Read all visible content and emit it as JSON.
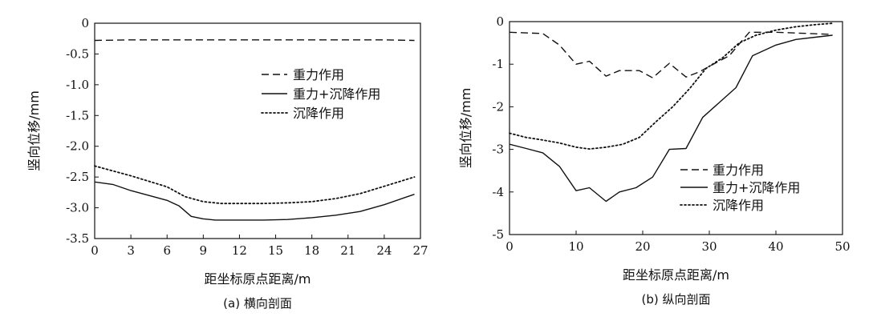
{
  "chart_data": [
    {
      "type": "line",
      "caption": "(a) 横向剖面",
      "xlabel": "距坐标原点距离/m",
      "ylabel": "竖向位移/mm",
      "xlim": [
        0,
        27
      ],
      "ylim": [
        -3.5,
        0
      ],
      "xticks": [
        "0",
        "3",
        "6",
        "9",
        "12",
        "15",
        "18",
        "21",
        "24",
        "27"
      ],
      "yticks": [
        "0",
        "-0.5",
        "-1.0",
        "-1.5",
        "-2.0",
        "-2.5",
        "-3.0",
        "-3.5"
      ],
      "legend_position": "upper-right",
      "series": [
        {
          "name": "重力作用",
          "style": "dashed",
          "x": [
            0,
            3,
            6,
            9,
            12,
            15,
            18,
            21,
            24,
            26.5
          ],
          "y": [
            -0.28,
            -0.27,
            -0.27,
            -0.27,
            -0.27,
            -0.27,
            -0.27,
            -0.27,
            -0.27,
            -0.28
          ]
        },
        {
          "name": "重力+沉降作用",
          "style": "solid",
          "x": [
            0,
            1.5,
            3,
            4.5,
            6,
            7,
            8,
            9,
            10,
            12,
            14,
            16,
            18,
            20,
            22,
            24,
            26.5
          ],
          "y": [
            -2.58,
            -2.62,
            -2.72,
            -2.8,
            -2.88,
            -2.97,
            -3.14,
            -3.18,
            -3.2,
            -3.2,
            -3.2,
            -3.19,
            -3.16,
            -3.12,
            -3.06,
            -2.95,
            -2.78
          ]
        },
        {
          "name": "沉降作用",
          "style": "dotted",
          "x": [
            0,
            1.5,
            3,
            4.5,
            6,
            7.5,
            9,
            10.5,
            12,
            14,
            16,
            18,
            20,
            22,
            24,
            26.5
          ],
          "y": [
            -2.32,
            -2.4,
            -2.48,
            -2.57,
            -2.66,
            -2.82,
            -2.9,
            -2.93,
            -2.93,
            -2.93,
            -2.92,
            -2.9,
            -2.85,
            -2.77,
            -2.65,
            -2.5
          ]
        }
      ]
    },
    {
      "type": "line",
      "caption": "(b) 纵向剖面",
      "xlabel": "距坐标原点距离/m",
      "ylabel": "竖向位移/mm",
      "xlim": [
        0,
        50
      ],
      "ylim": [
        -5,
        0
      ],
      "xticks": [
        "0",
        "10",
        "20",
        "30",
        "40",
        "50"
      ],
      "yticks": [
        "0",
        "-1",
        "-2",
        "-3",
        "-4",
        "-5"
      ],
      "legend_position": "lower-right",
      "series": [
        {
          "name": "重力作用",
          "style": "dashed",
          "x": [
            0,
            5,
            7.5,
            10,
            12,
            14.5,
            16.5,
            19.5,
            21.5,
            24,
            26.5,
            28.5,
            30,
            33,
            36,
            40,
            48.5
          ],
          "y": [
            -0.25,
            -0.28,
            -0.55,
            -1.0,
            -0.93,
            -1.28,
            -1.15,
            -1.15,
            -1.32,
            -0.98,
            -1.3,
            -1.18,
            -1.05,
            -0.8,
            -0.25,
            -0.25,
            -0.3
          ]
        },
        {
          "name": "重力+沉降作用",
          "style": "solid",
          "x": [
            0,
            2.5,
            5,
            7.5,
            10,
            12,
            14.5,
            16.5,
            19,
            21.5,
            24,
            26.5,
            29,
            31.5,
            34,
            36.5,
            40,
            43,
            48.5
          ],
          "y": [
            -2.88,
            -2.98,
            -3.08,
            -3.4,
            -3.97,
            -3.9,
            -4.22,
            -4.0,
            -3.9,
            -3.65,
            -3.0,
            -2.98,
            -2.25,
            -1.9,
            -1.55,
            -0.8,
            -0.55,
            -0.42,
            -0.32
          ]
        },
        {
          "name": "沉降作用",
          "style": "dotted",
          "x": [
            0,
            2.5,
            5,
            7.5,
            10,
            12,
            14.5,
            17,
            19.5,
            22,
            24.5,
            27,
            29.5,
            32,
            34.5,
            37,
            40,
            43,
            46,
            48.5
          ],
          "y": [
            -2.62,
            -2.72,
            -2.78,
            -2.85,
            -2.95,
            -2.99,
            -2.95,
            -2.88,
            -2.72,
            -2.35,
            -2.0,
            -1.58,
            -1.1,
            -0.85,
            -0.5,
            -0.32,
            -0.2,
            -0.12,
            -0.07,
            -0.04
          ]
        }
      ]
    }
  ]
}
